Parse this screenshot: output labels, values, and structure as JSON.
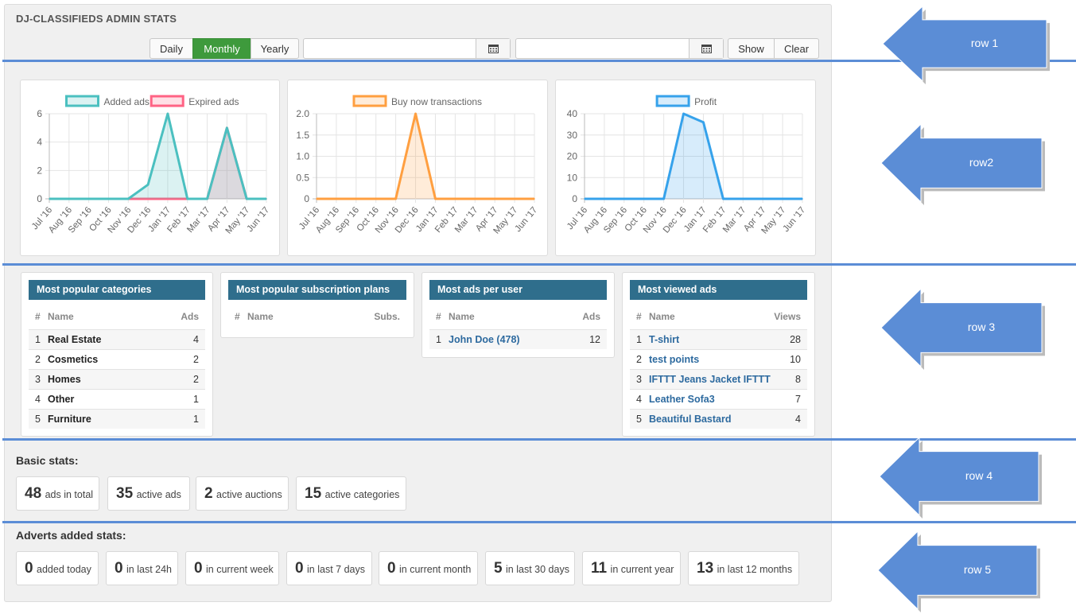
{
  "header": {
    "title": "DJ-CLASSIFIEDS ADMIN STATS"
  },
  "toolbar": {
    "daily_label": "Daily",
    "monthly_label": "Monthly",
    "yearly_label": "Yearly",
    "date_from": "",
    "date_to": "",
    "show_label": "Show",
    "clear_label": "Clear"
  },
  "colors": {
    "accent_green": "#3e9a3c",
    "header_blue": "#2f6e8c",
    "link_blue": "#2d6a9f",
    "arrow_blue": "#5b8dd6"
  },
  "charts": [
    {
      "name": "ads-chart"
    },
    {
      "name": "buy-now-chart"
    },
    {
      "name": "profit-chart"
    }
  ],
  "chart_data": [
    {
      "type": "area",
      "categories": [
        "Jul '16",
        "Aug '16",
        "Sep '16",
        "Oct '16",
        "Nov '16",
        "Dec '16",
        "Jan '17",
        "Feb '17",
        "Mar '17",
        "Apr '17",
        "May '17",
        "Jun '17"
      ],
      "ylim": [
        0,
        6
      ],
      "yticks": [
        0,
        2,
        4,
        6
      ],
      "legend": "top",
      "series": [
        {
          "name": "Added ads",
          "color": "#4bc0c0",
          "fill": "rgba(75,192,192,0.2)",
          "values": [
            0,
            0,
            0,
            0,
            0,
            1,
            6,
            0,
            0,
            5,
            0,
            0
          ]
        },
        {
          "name": "Expired ads",
          "color": "#ff6384",
          "fill": "rgba(255,99,132,0.2)",
          "values": [
            0,
            0,
            0,
            0,
            0,
            0,
            0,
            0,
            0,
            5,
            0,
            0
          ]
        }
      ]
    },
    {
      "type": "area",
      "categories": [
        "Jul '16",
        "Aug '16",
        "Sep '16",
        "Oct '16",
        "Nov '16",
        "Dec '16",
        "Jan '17",
        "Feb '17",
        "Mar '17",
        "Apr '17",
        "May '17",
        "Jun '17"
      ],
      "ylim": [
        0,
        2
      ],
      "yticks": [
        0,
        0.5,
        1,
        1.5,
        2
      ],
      "ytick_labels": [
        "0",
        "0.5",
        "1.0",
        "1.5",
        "2.0"
      ],
      "legend": "top",
      "series": [
        {
          "name": "Buy now transactions",
          "color": "#ff9f40",
          "fill": "rgba(255,159,64,0.2)",
          "values": [
            0,
            0,
            0,
            0,
            0,
            2,
            0,
            0,
            0,
            0,
            0,
            0
          ]
        }
      ]
    },
    {
      "type": "area",
      "categories": [
        "Jul '16",
        "Aug '16",
        "Sep '16",
        "Oct '16",
        "Nov '16",
        "Dec '16",
        "Jan '17",
        "Feb '17",
        "Mar '17",
        "Apr '17",
        "May '17",
        "Jun '17"
      ],
      "ylim": [
        0,
        40
      ],
      "yticks": [
        0,
        10,
        20,
        30,
        40
      ],
      "legend": "top",
      "series": [
        {
          "name": "Profit",
          "color": "#36a2eb",
          "fill": "rgba(54,162,235,0.2)",
          "values": [
            0,
            0,
            0,
            0,
            0,
            40,
            36,
            0,
            0,
            0,
            0,
            0
          ]
        }
      ]
    }
  ],
  "tables": {
    "categories": {
      "title": "Most popular categories",
      "col_num": "#",
      "col_name": "Name",
      "col_val": "Ads",
      "rows": [
        {
          "num": "1",
          "name": "Real Estate",
          "val": "4"
        },
        {
          "num": "2",
          "name": "Cosmetics",
          "val": "2"
        },
        {
          "num": "3",
          "name": "Homes",
          "val": "2"
        },
        {
          "num": "4",
          "name": "Other",
          "val": "1"
        },
        {
          "num": "5",
          "name": "Furniture",
          "val": "1"
        }
      ]
    },
    "plans": {
      "title": "Most popular subscription plans",
      "col_num": "#",
      "col_name": "Name",
      "col_val": "Subs.",
      "rows": []
    },
    "users": {
      "title": "Most ads per user",
      "col_num": "#",
      "col_name": "Name",
      "col_val": "Ads",
      "rows": [
        {
          "num": "1",
          "name": "John Doe (478)",
          "val": "12"
        }
      ]
    },
    "viewed": {
      "title": "Most viewed ads",
      "col_num": "#",
      "col_name": "Name",
      "col_val": "Views",
      "rows": [
        {
          "num": "1",
          "name": "T-shirt",
          "val": "28"
        },
        {
          "num": "2",
          "name": "test points",
          "val": "10"
        },
        {
          "num": "3",
          "name": "IFTTT Jeans Jacket IFTTT",
          "val": "8"
        },
        {
          "num": "4",
          "name": "Leather Sofa3",
          "val": "7"
        },
        {
          "num": "5",
          "name": "Beautiful Bastard",
          "val": "4"
        }
      ]
    }
  },
  "basic": {
    "title": "Basic stats:",
    "items": [
      {
        "num": "48",
        "label": "ads in total"
      },
      {
        "num": "35",
        "label": "active ads"
      },
      {
        "num": "2",
        "label": "active auctions"
      },
      {
        "num": "15",
        "label": "active categories"
      }
    ]
  },
  "adverts": {
    "title": "Adverts added stats:",
    "items": [
      {
        "num": "0",
        "label": "added today"
      },
      {
        "num": "0",
        "label": "in last 24h"
      },
      {
        "num": "0",
        "label": "in current week"
      },
      {
        "num": "0",
        "label": "in last 7 days"
      },
      {
        "num": "0",
        "label": "in current month"
      },
      {
        "num": "5",
        "label": "in last 30 days"
      },
      {
        "num": "11",
        "label": "in current year"
      },
      {
        "num": "13",
        "label": "in last 12 months"
      }
    ]
  },
  "arrows": {
    "row1": "row 1",
    "row2": "row2",
    "row3": "row 3",
    "row4": "row 4",
    "row5": "row 5"
  }
}
